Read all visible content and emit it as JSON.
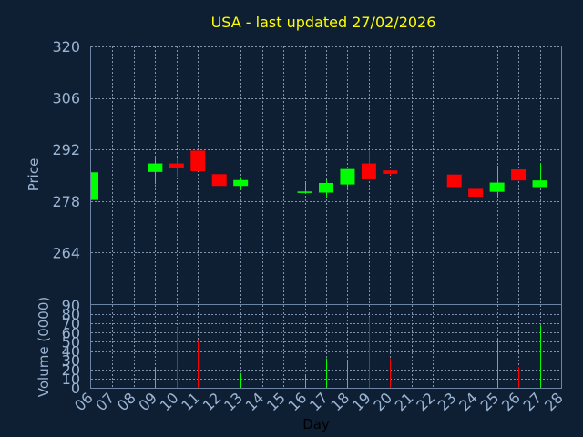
{
  "chart_data": [
    {
      "type": "candlestick",
      "title": "USA - last updated 27/02/2026",
      "xlabel": "",
      "ylabel": "Price",
      "ylim": [
        250,
        320
      ],
      "yticks": [
        264,
        278,
        292,
        306,
        320
      ],
      "grid": true,
      "colors": {
        "up": "#00ff00",
        "down": "#ff0000"
      },
      "candles": [
        {
          "day": "06",
          "open": 278.3,
          "close": 285.8,
          "high": 285.8,
          "low": 278.3
        },
        {
          "day": "09",
          "open": 285.9,
          "close": 288.2,
          "high": 289.7,
          "low": 282.6
        },
        {
          "day": "10",
          "open": 288.2,
          "close": 286.9,
          "high": 289.7,
          "low": 284.6
        },
        {
          "day": "11",
          "open": 291.7,
          "close": 286.1,
          "high": 291.7,
          "low": 286.1
        },
        {
          "day": "12",
          "open": 285.3,
          "close": 282.1,
          "high": 291.7,
          "low": 282.1
        },
        {
          "day": "13",
          "open": 282.1,
          "close": 283.7,
          "high": 284.5,
          "low": 281.2
        },
        {
          "day": "16",
          "open": 280.2,
          "close": 280.6,
          "high": 283.4,
          "low": 280.1
        },
        {
          "day": "17",
          "open": 280.3,
          "close": 282.9,
          "high": 283.9,
          "low": 278.7
        },
        {
          "day": "18",
          "open": 282.5,
          "close": 286.7,
          "high": 286.7,
          "low": 281.7
        },
        {
          "day": "19",
          "open": 288.2,
          "close": 283.9,
          "high": 291.7,
          "low": 283.9
        },
        {
          "day": "20",
          "open": 286.3,
          "close": 285.4,
          "high": 286.3,
          "low": 285.1
        },
        {
          "day": "23",
          "open": 285.2,
          "close": 281.8,
          "high": 288.2,
          "low": 281.4
        },
        {
          "day": "24",
          "open": 281.3,
          "close": 279.2,
          "high": 284.6,
          "low": 279.0
        },
        {
          "day": "25",
          "open": 280.5,
          "close": 283.0,
          "high": 287.6,
          "low": 278.9
        },
        {
          "day": "26",
          "open": 286.6,
          "close": 283.6,
          "high": 286.6,
          "low": 283.6
        },
        {
          "day": "27",
          "open": 281.8,
          "close": 283.6,
          "high": 288.3,
          "low": 281.8
        }
      ]
    },
    {
      "type": "bar",
      "xlabel": "Day",
      "ylabel": "Volume (0000)",
      "ylim": [
        0,
        90
      ],
      "yticks": [
        0,
        10,
        20,
        30,
        40,
        50,
        60,
        70,
        80,
        90
      ],
      "grid": true,
      "categories": [
        "06",
        "07",
        "08",
        "09",
        "10",
        "11",
        "12",
        "13",
        "14",
        "15",
        "16",
        "17",
        "18",
        "19",
        "20",
        "21",
        "22",
        "23",
        "24",
        "25",
        "26",
        "27",
        "28"
      ],
      "volumes": [
        {
          "day": "09",
          "value": 21,
          "direction": "up"
        },
        {
          "day": "10",
          "value": 66,
          "direction": "down"
        },
        {
          "day": "11",
          "value": 51,
          "direction": "down"
        },
        {
          "day": "12",
          "value": 45,
          "direction": "down"
        },
        {
          "day": "13",
          "value": 16,
          "direction": "up"
        },
        {
          "day": "16",
          "value": 13,
          "direction": "up"
        },
        {
          "day": "17",
          "value": 32,
          "direction": "up"
        },
        {
          "day": "18",
          "value": 29,
          "direction": "up"
        },
        {
          "day": "19",
          "value": 77,
          "direction": "down"
        },
        {
          "day": "20",
          "value": 32,
          "direction": "down"
        },
        {
          "day": "23",
          "value": 26,
          "direction": "down"
        },
        {
          "day": "24",
          "value": 44,
          "direction": "down"
        },
        {
          "day": "25",
          "value": 52,
          "direction": "up"
        },
        {
          "day": "26",
          "value": 23,
          "direction": "down"
        },
        {
          "day": "27",
          "value": 68,
          "direction": "up"
        }
      ]
    }
  ]
}
